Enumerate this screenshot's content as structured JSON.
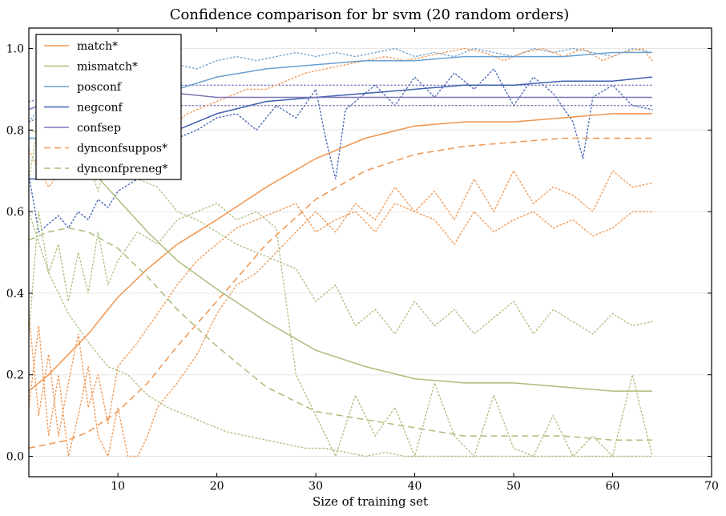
{
  "chart_data": {
    "type": "line",
    "title": "Confidence comparison for br svm (20 random orders)",
    "xlabel": "Size of training set",
    "ylabel": "",
    "xlim": [
      1,
      70
    ],
    "ylim": [
      -0.05,
      1.05
    ],
    "xticks": [
      10,
      20,
      30,
      40,
      50,
      60,
      70
    ],
    "yticks": [
      0.0,
      0.2,
      0.4,
      0.6,
      0.8,
      1.0
    ],
    "grid": "horizontal",
    "legend_position": "top-left",
    "series": [
      {
        "name": "match*",
        "color": "#f0954e",
        "dash": "solid",
        "x": [
          1,
          3,
          5,
          7,
          10,
          13,
          16,
          20,
          25,
          30,
          35,
          40,
          45,
          50,
          55,
          60,
          64
        ],
        "y": [
          0.16,
          0.2,
          0.25,
          0.3,
          0.39,
          0.46,
          0.52,
          0.58,
          0.66,
          0.73,
          0.78,
          0.81,
          0.82,
          0.82,
          0.83,
          0.84,
          0.84
        ]
      },
      {
        "name": "mismatch*",
        "color": "#a9be7b",
        "dash": "solid",
        "x": [
          1,
          3,
          5,
          7,
          10,
          13,
          16,
          20,
          25,
          30,
          35,
          40,
          45,
          50,
          55,
          60,
          64
        ],
        "y": [
          0.8,
          0.79,
          0.76,
          0.71,
          0.63,
          0.55,
          0.48,
          0.41,
          0.33,
          0.26,
          0.22,
          0.19,
          0.18,
          0.18,
          0.17,
          0.16,
          0.16
        ]
      },
      {
        "name": "posconf",
        "color": "#6a9fd0",
        "dash": "solid",
        "x": [
          1,
          3,
          5,
          8,
          10,
          13,
          16,
          20,
          25,
          30,
          35,
          40,
          45,
          50,
          55,
          60,
          64
        ],
        "y": [
          0.78,
          0.78,
          0.79,
          0.82,
          0.85,
          0.87,
          0.9,
          0.93,
          0.95,
          0.96,
          0.97,
          0.97,
          0.98,
          0.98,
          0.98,
          0.99,
          0.99
        ]
      },
      {
        "name": "negconf",
        "color": "#4060b0",
        "dash": "solid",
        "x": [
          1,
          3,
          5,
          8,
          10,
          13,
          16,
          20,
          25,
          30,
          35,
          40,
          45,
          50,
          55,
          60,
          64
        ],
        "y": [
          0.68,
          0.68,
          0.68,
          0.69,
          0.72,
          0.76,
          0.8,
          0.84,
          0.87,
          0.88,
          0.89,
          0.9,
          0.91,
          0.91,
          0.92,
          0.92,
          0.93
        ]
      },
      {
        "name": "confsep",
        "color": "#7b74b8",
        "dash": "solid",
        "x": [
          1,
          3,
          5,
          8,
          10,
          13,
          16,
          20,
          25,
          30,
          35,
          40,
          45,
          50,
          55,
          60,
          64
        ],
        "y": [
          0.85,
          0.87,
          0.89,
          0.9,
          0.9,
          0.89,
          0.89,
          0.88,
          0.88,
          0.88,
          0.88,
          0.88,
          0.88,
          0.88,
          0.88,
          0.88,
          0.88
        ]
      },
      {
        "name": "dynconfsuppos*",
        "color": "#f0954e",
        "dash": "dashed",
        "x": [
          1,
          3,
          5,
          7,
          10,
          13,
          16,
          20,
          25,
          30,
          35,
          40,
          45,
          50,
          55,
          60,
          64
        ],
        "y": [
          0.02,
          0.03,
          0.04,
          0.06,
          0.11,
          0.18,
          0.27,
          0.38,
          0.52,
          0.63,
          0.7,
          0.74,
          0.76,
          0.77,
          0.78,
          0.78,
          0.78
        ]
      },
      {
        "name": "dynconfpreneg*",
        "color": "#a9be7b",
        "dash": "dashed",
        "x": [
          1,
          3,
          5,
          7,
          10,
          13,
          16,
          20,
          25,
          30,
          35,
          40,
          45,
          50,
          55,
          60,
          64
        ],
        "y": [
          0.53,
          0.55,
          0.56,
          0.55,
          0.51,
          0.44,
          0.36,
          0.27,
          0.17,
          0.11,
          0.09,
          0.07,
          0.05,
          0.05,
          0.05,
          0.04,
          0.04
        ]
      }
    ],
    "unlabeled_series": [
      {
        "color": "#6a9fd0",
        "style": "dotted",
        "x": [
          1,
          2,
          3,
          4,
          5,
          6,
          7,
          8,
          9,
          10,
          12,
          14,
          16,
          18,
          20,
          22,
          24,
          26,
          28,
          30,
          32,
          34,
          36,
          38,
          40,
          42,
          44,
          46,
          48,
          50,
          52,
          54,
          56,
          58,
          60,
          62,
          64
        ],
        "y": [
          0.82,
          0.85,
          0.88,
          0.86,
          0.9,
          0.87,
          0.91,
          0.9,
          0.93,
          0.92,
          0.94,
          0.95,
          0.96,
          0.95,
          0.97,
          0.98,
          0.97,
          0.98,
          0.99,
          0.98,
          0.99,
          0.98,
          0.99,
          1.0,
          0.98,
          0.99,
          0.98,
          1.0,
          0.99,
          0.98,
          1.0,
          0.99,
          1.0,
          0.99,
          0.98,
          1.0,
          0.99
        ]
      },
      {
        "color": "#4060b0",
        "style": "dotted",
        "x": [
          1,
          2,
          3,
          4,
          5,
          6,
          7,
          8,
          9,
          10,
          12,
          14,
          16,
          18,
          20,
          22,
          24,
          26,
          28,
          30,
          31,
          32,
          33,
          34,
          36,
          38,
          40,
          42,
          44,
          46,
          48,
          50,
          52,
          54,
          56,
          57,
          58,
          60,
          62,
          64
        ],
        "y": [
          0.69,
          0.55,
          0.57,
          0.59,
          0.56,
          0.6,
          0.58,
          0.63,
          0.61,
          0.65,
          0.68,
          0.74,
          0.78,
          0.8,
          0.83,
          0.84,
          0.8,
          0.86,
          0.83,
          0.9,
          0.78,
          0.68,
          0.85,
          0.87,
          0.91,
          0.86,
          0.93,
          0.88,
          0.94,
          0.9,
          0.95,
          0.86,
          0.93,
          0.89,
          0.82,
          0.73,
          0.88,
          0.91,
          0.86,
          0.85
        ]
      },
      {
        "color": "#7b74b8",
        "style": "dotted",
        "x": [
          1,
          3,
          5,
          8,
          10,
          14,
          18,
          22,
          26,
          30,
          35,
          40,
          45,
          50,
          55,
          60,
          64
        ],
        "y": [
          0.82,
          0.84,
          0.85,
          0.86,
          0.86,
          0.86,
          0.86,
          0.86,
          0.86,
          0.86,
          0.86,
          0.86,
          0.86,
          0.86,
          0.86,
          0.86,
          0.86
        ]
      },
      {
        "color": "#7b74b8",
        "style": "dotted",
        "x": [
          1,
          3,
          5,
          8,
          10,
          14,
          18,
          22,
          26,
          30,
          35,
          40,
          45,
          50,
          55,
          60,
          64
        ],
        "y": [
          0.87,
          0.88,
          0.9,
          0.91,
          0.91,
          0.91,
          0.91,
          0.91,
          0.91,
          0.91,
          0.91,
          0.91,
          0.91,
          0.91,
          0.91,
          0.91,
          0.91
        ]
      },
      {
        "color": "#f0954e",
        "style": "dotted",
        "x": [
          1,
          2,
          3,
          4,
          5,
          6,
          7,
          8,
          9,
          10,
          11,
          12,
          13,
          14,
          16,
          18,
          20,
          22,
          24,
          26,
          28,
          30,
          32,
          34,
          36,
          38,
          40,
          42,
          44,
          46,
          48,
          50,
          52,
          54,
          56,
          58,
          60,
          62,
          64
        ],
        "y": [
          0.12,
          0.32,
          0.05,
          0.2,
          0.0,
          0.1,
          0.22,
          0.05,
          0.0,
          0.12,
          0.0,
          0.0,
          0.05,
          0.12,
          0.18,
          0.25,
          0.35,
          0.42,
          0.45,
          0.5,
          0.55,
          0.6,
          0.55,
          0.62,
          0.58,
          0.66,
          0.6,
          0.65,
          0.58,
          0.68,
          0.6,
          0.7,
          0.62,
          0.66,
          0.64,
          0.6,
          0.7,
          0.66,
          0.67
        ]
      },
      {
        "color": "#f0954e",
        "style": "dotted",
        "x": [
          1,
          2,
          3,
          4,
          5,
          6,
          7,
          8,
          9,
          10,
          12,
          14,
          16,
          18,
          20,
          22,
          24,
          26,
          28,
          30,
          32,
          34,
          36,
          38,
          40,
          42,
          44,
          46,
          48,
          50,
          52,
          54,
          56,
          58,
          60,
          62,
          64
        ],
        "y": [
          0.35,
          0.1,
          0.25,
          0.05,
          0.18,
          0.3,
          0.12,
          0.2,
          0.08,
          0.22,
          0.28,
          0.35,
          0.42,
          0.48,
          0.52,
          0.56,
          0.58,
          0.6,
          0.62,
          0.55,
          0.58,
          0.6,
          0.55,
          0.62,
          0.6,
          0.58,
          0.52,
          0.6,
          0.55,
          0.58,
          0.6,
          0.56,
          0.58,
          0.54,
          0.56,
          0.6,
          0.6
        ]
      },
      {
        "color": "#f0954e",
        "style": "dotted",
        "x": [
          1,
          3,
          5,
          7,
          9,
          11,
          13,
          15,
          17,
          19,
          21,
          23,
          25,
          27,
          29,
          31,
          33,
          35,
          37,
          39,
          41,
          43,
          45,
          47,
          49,
          51,
          53,
          55,
          57,
          59,
          61,
          63,
          64
        ],
        "y": [
          0.75,
          0.66,
          0.72,
          0.7,
          0.68,
          0.74,
          0.78,
          0.8,
          0.84,
          0.86,
          0.88,
          0.9,
          0.9,
          0.92,
          0.94,
          0.95,
          0.96,
          0.97,
          0.98,
          0.97,
          0.98,
          0.99,
          1.0,
          0.99,
          0.97,
          0.99,
          1.0,
          0.98,
          1.0,
          0.97,
          0.99,
          1.0,
          0.97
        ]
      },
      {
        "color": "#a9be7b",
        "style": "dotted",
        "x": [
          1,
          2,
          3,
          4,
          5,
          6,
          7,
          8,
          9,
          10,
          12,
          14,
          16,
          18,
          20,
          22,
          24,
          26,
          28,
          30,
          32,
          34,
          36,
          38,
          40,
          42,
          44,
          46,
          48,
          50,
          52,
          54,
          56,
          58,
          60,
          62,
          64
        ],
        "y": [
          0.68,
          0.82,
          0.75,
          0.88,
          0.7,
          0.78,
          0.72,
          0.65,
          0.74,
          0.72,
          0.68,
          0.66,
          0.6,
          0.58,
          0.55,
          0.52,
          0.5,
          0.48,
          0.46,
          0.38,
          0.42,
          0.32,
          0.36,
          0.3,
          0.38,
          0.32,
          0.36,
          0.3,
          0.34,
          0.38,
          0.3,
          0.36,
          0.33,
          0.3,
          0.35,
          0.32,
          0.33
        ]
      },
      {
        "color": "#a9be7b",
        "style": "dotted",
        "x": [
          1,
          2,
          3,
          4,
          5,
          6,
          7,
          8,
          9,
          10,
          12,
          14,
          16,
          18,
          20,
          22,
          24,
          26,
          28,
          30,
          32,
          34,
          36,
          38,
          40,
          42,
          44,
          46,
          48,
          50,
          52,
          54,
          56,
          58,
          60,
          62,
          64
        ],
        "y": [
          0.3,
          0.6,
          0.45,
          0.52,
          0.38,
          0.5,
          0.4,
          0.55,
          0.42,
          0.48,
          0.55,
          0.52,
          0.58,
          0.6,
          0.62,
          0.58,
          0.6,
          0.56,
          0.2,
          0.1,
          0.0,
          0.15,
          0.05,
          0.12,
          0.0,
          0.18,
          0.05,
          0.0,
          0.15,
          0.02,
          0.0,
          0.1,
          0.0,
          0.05,
          0.0,
          0.2,
          0.0
        ]
      },
      {
        "color": "#a9be7b",
        "style": "dotted",
        "x": [
          1,
          3,
          5,
          7,
          9,
          11,
          13,
          15,
          17,
          19,
          21,
          23,
          25,
          27,
          29,
          31,
          33,
          35,
          37,
          39,
          41,
          43,
          45,
          47,
          49,
          51,
          53,
          55,
          57,
          59,
          61,
          63,
          64
        ],
        "y": [
          0.6,
          0.45,
          0.35,
          0.28,
          0.22,
          0.2,
          0.15,
          0.12,
          0.1,
          0.08,
          0.06,
          0.05,
          0.04,
          0.03,
          0.02,
          0.02,
          0.01,
          0.0,
          0.01,
          0.0,
          0.0,
          0.0,
          0.0,
          0.0,
          0.0,
          0.0,
          0.0,
          0.0,
          0.0,
          0.0,
          0.0,
          0.0,
          0.0
        ]
      }
    ]
  }
}
